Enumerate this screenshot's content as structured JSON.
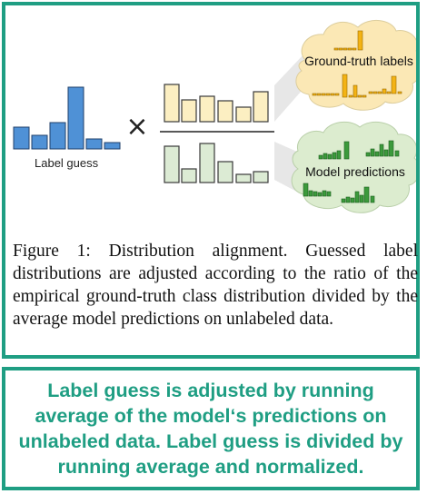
{
  "diagram": {
    "label_guess": "Label guess",
    "times_symbol": "×",
    "cloud_top_label": "Ground-truth labels",
    "cloud_bottom_label": "Model predictions",
    "colors": {
      "blue_bar": "#4f91d6",
      "numerator_bar": "#fcefc2",
      "denominator_bar": "#dcebd4",
      "gt_bar": "#f3b315",
      "pred_bar": "#3c9a3c",
      "cloud_gt": "#fbe8b5",
      "cloud_pred": "#dceccf"
    }
  },
  "caption": "Figure 1: Distribution alignment. Guessed label distributions are adjusted according to the ratio of the empirical ground-truth class distribution divided by the average model predictions on unlabeled data.",
  "summary": "Label guess is adjusted by running average of the model‘s predictions on unlabeled data. Label guess is divided by running average and normalized."
}
